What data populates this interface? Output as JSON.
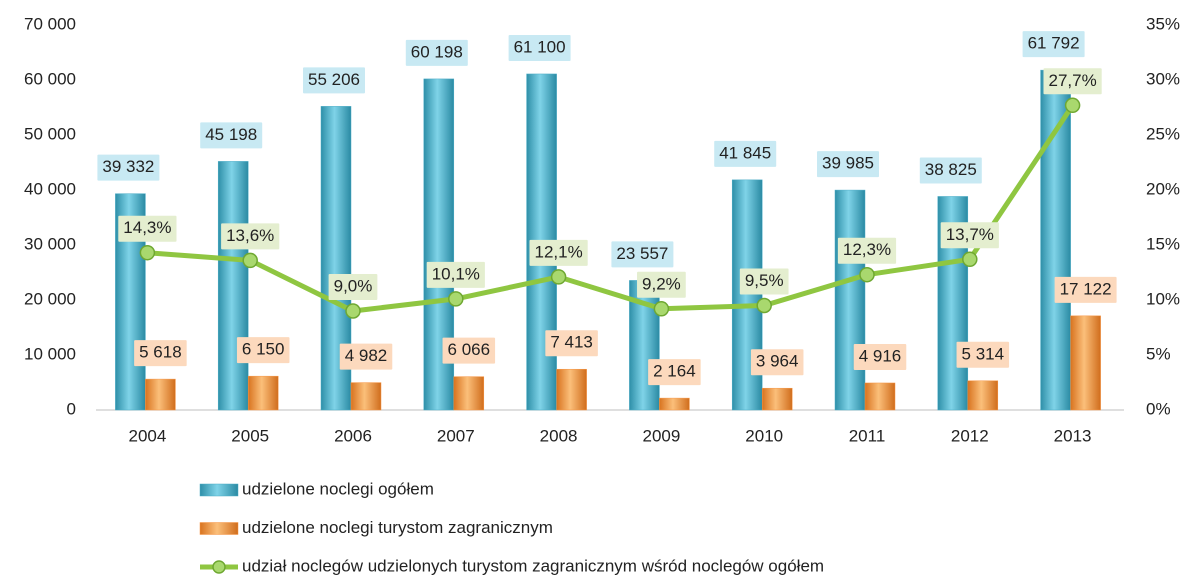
{
  "chart_data": {
    "type": "combo",
    "categories": [
      "2004",
      "2005",
      "2006",
      "2007",
      "2008",
      "2009",
      "2010",
      "2011",
      "2012",
      "2013"
    ],
    "ylim": [
      0,
      70000
    ],
    "yticks": [
      0,
      {
        "value": 10000,
        "label": "10 000"
      },
      {
        "value": 20000,
        "label": "20 000"
      },
      {
        "value": 30000,
        "label": "30 000"
      },
      {
        "value": 40000,
        "label": "40 000"
      },
      {
        "value": 50000,
        "label": "50 000"
      },
      {
        "value": 60000,
        "label": "60 000"
      },
      {
        "value": 70000,
        "label": "70 000"
      }
    ],
    "y2lim": [
      0,
      35
    ],
    "y2ticks": [
      {
        "value": 0,
        "label": "0%"
      },
      {
        "value": 5,
        "label": "5%"
      },
      {
        "value": 10,
        "label": "10%"
      },
      {
        "value": 15,
        "label": "15%"
      },
      {
        "value": 20,
        "label": "20%"
      },
      {
        "value": 25,
        "label": "25%"
      },
      {
        "value": 30,
        "label": "30%"
      },
      {
        "value": 35,
        "label": "35%"
      }
    ],
    "series": [
      {
        "name": "udzielone noclegi ogółem",
        "type": "bar",
        "color": "#4bacc6",
        "values": [
          39332,
          45198,
          55206,
          60198,
          61100,
          23557,
          41845,
          39985,
          38825,
          61792
        ],
        "value_labels": [
          "39 332",
          "45 198",
          "55 206",
          "60 198",
          "61 100",
          "23 557",
          "41 845",
          "39 985",
          "38 825",
          "61 792"
        ]
      },
      {
        "name": "udzielone noclegi turystom zagranicznym",
        "type": "bar",
        "color": "#f79646",
        "values": [
          5618,
          6150,
          4982,
          6066,
          7413,
          2164,
          3964,
          4916,
          5314,
          17122
        ],
        "value_labels": [
          "5 618",
          "6 150",
          "4 982",
          "6 066",
          "7 413",
          "2 164",
          "3 964",
          "4 916",
          "5 314",
          "17 122"
        ]
      },
      {
        "name": "udział noclegów udzielonych turystom zagranicznym wśród noclegów ogółem",
        "type": "line",
        "axis": "y2",
        "color": "#8fc641",
        "values": [
          14.3,
          13.6,
          9.0,
          10.1,
          12.1,
          9.2,
          9.5,
          12.3,
          13.7,
          27.7
        ],
        "value_labels": [
          "14,3%",
          "13,6%",
          "9,0%",
          "10,1%",
          "12,1%",
          "9,2%",
          "9,5%",
          "12,3%",
          "13,7%",
          "27,7%"
        ]
      }
    ]
  }
}
